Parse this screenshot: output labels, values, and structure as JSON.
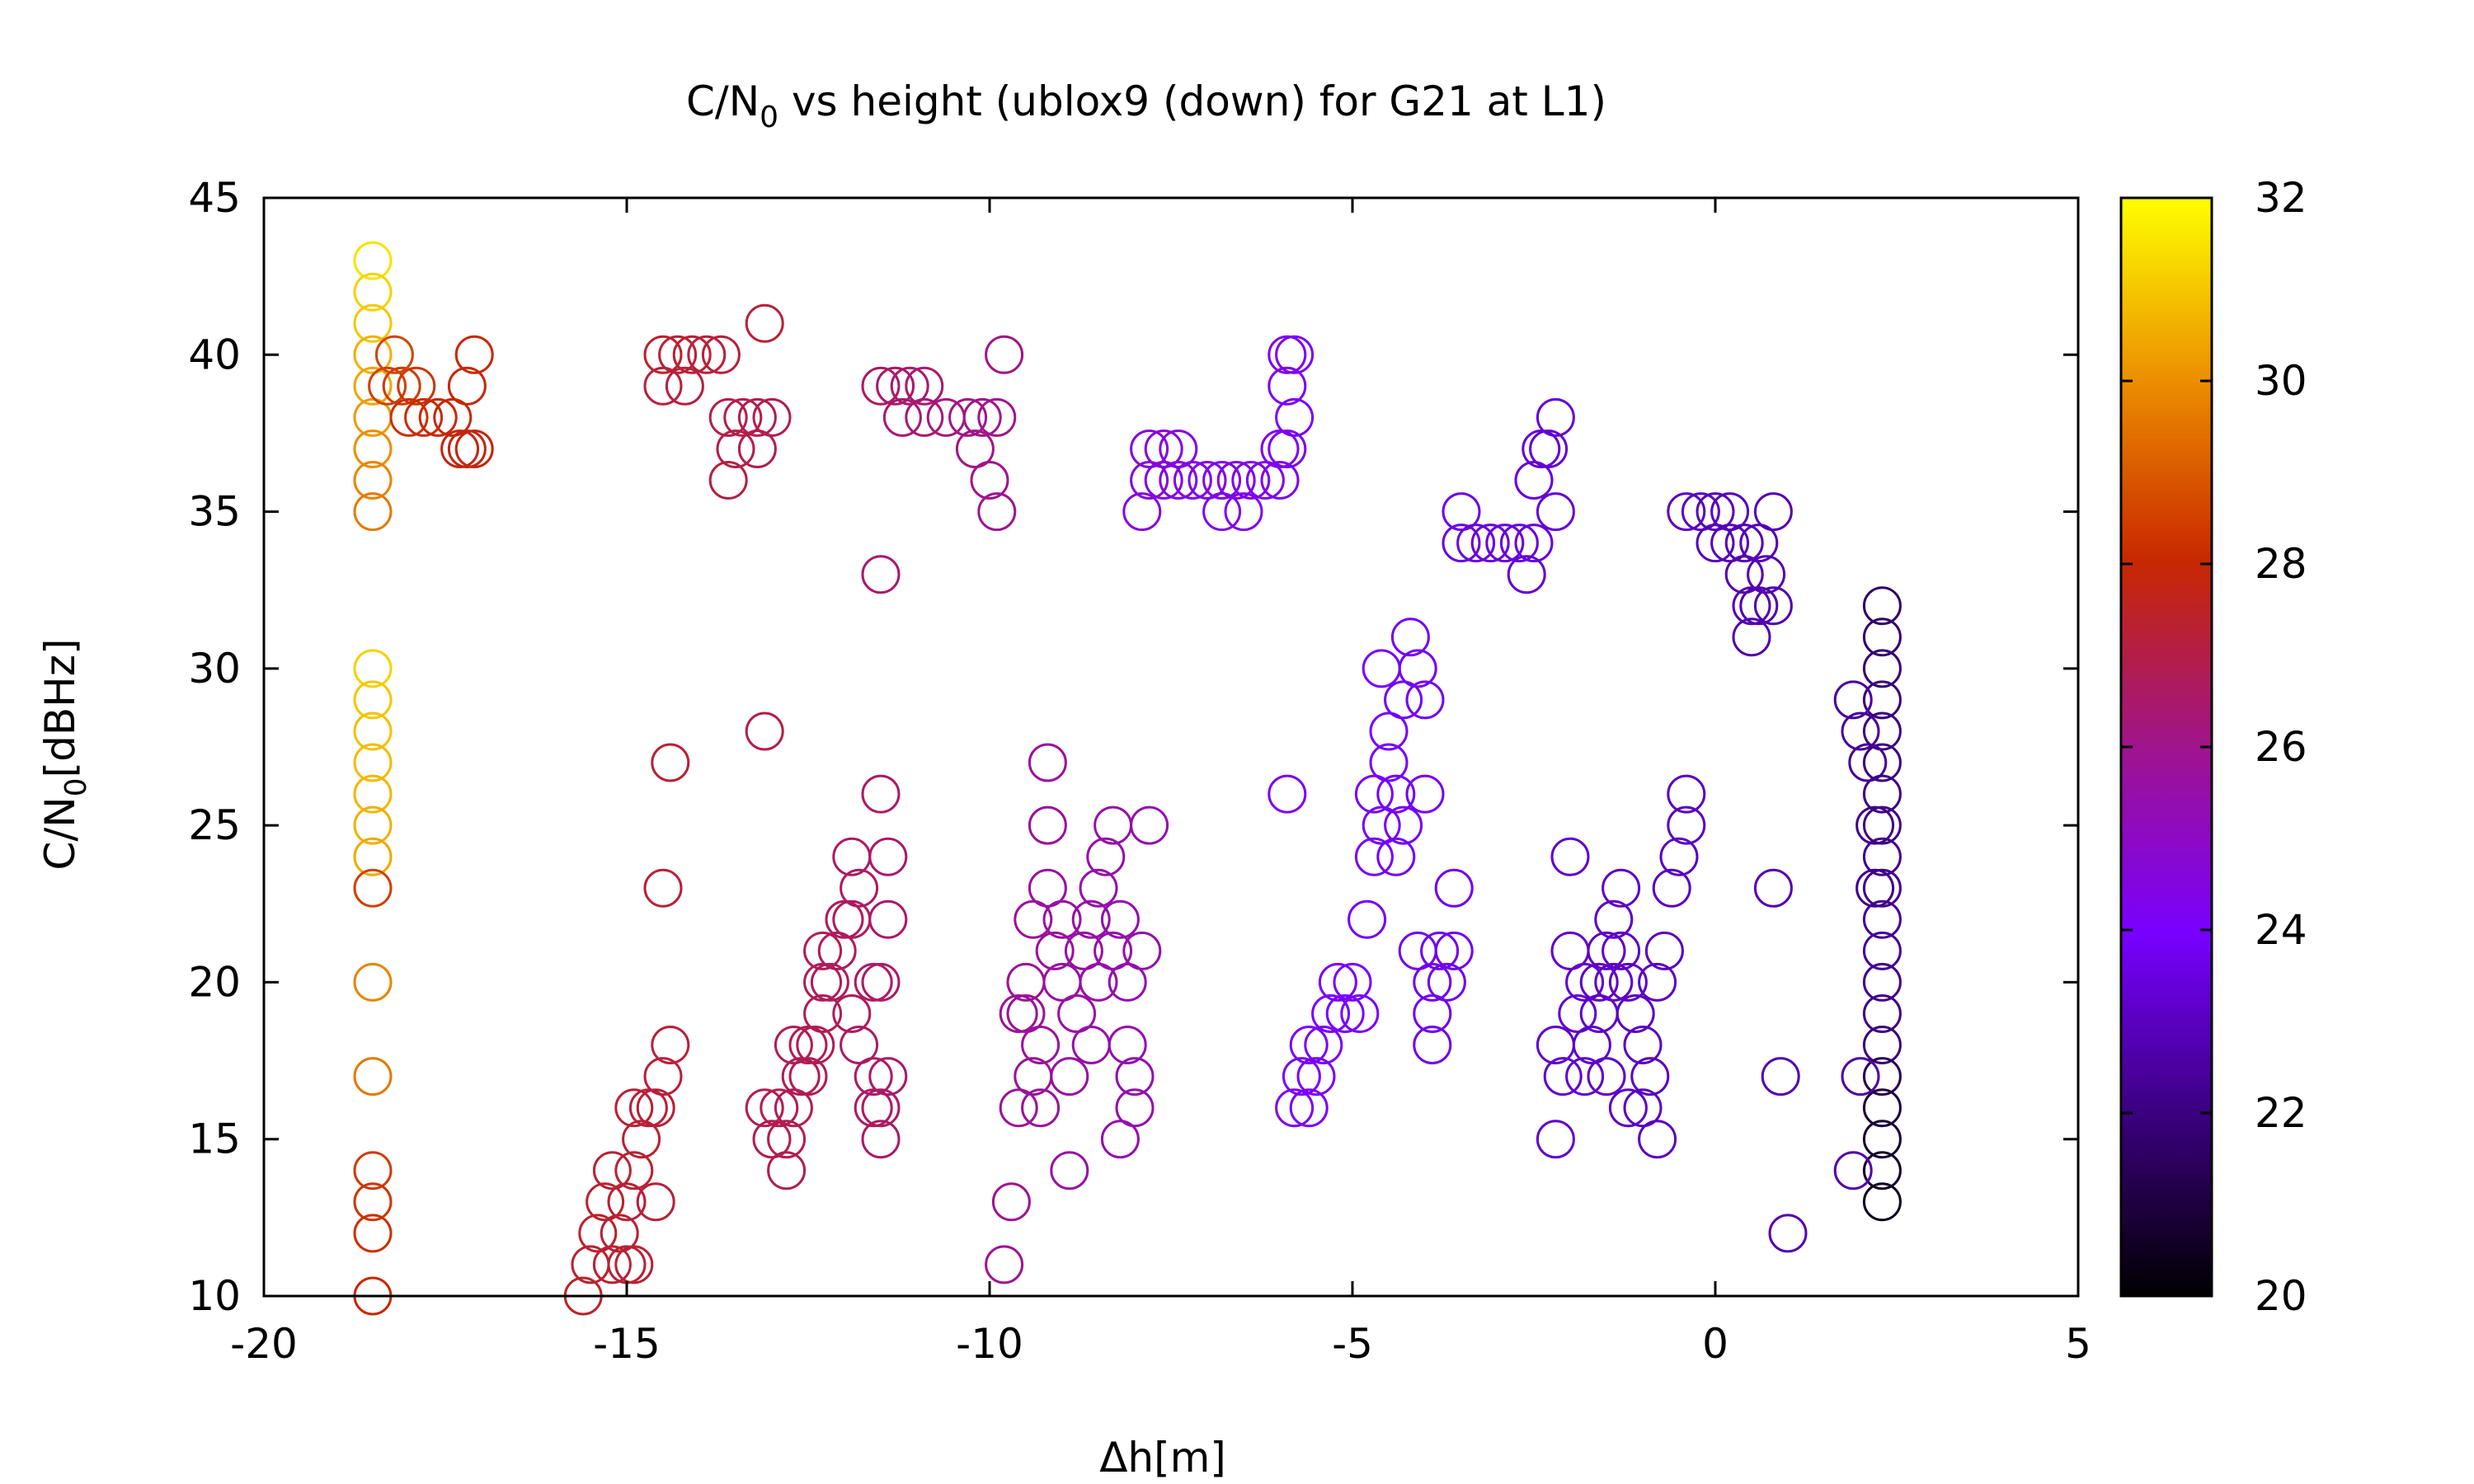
{
  "chart_data": {
    "type": "scatter",
    "title_main": "C/N",
    "title_sub": "0",
    "title_rest": " vs height (ublox9 (down) for G21 at L1)",
    "xlabel": "Δh[m]",
    "ylabel_main": "C/N",
    "ylabel_sub": "0",
    "ylabel_rest": "[dBHz]",
    "xlim": [
      -20,
      5
    ],
    "ylim": [
      10,
      45
    ],
    "xticks": [
      "-20",
      "-15",
      "-10",
      "-5",
      "0",
      "5"
    ],
    "yticks": [
      "10",
      "15",
      "20",
      "25",
      "30",
      "35",
      "40",
      "45"
    ],
    "colorbar": {
      "range": [
        20,
        32
      ],
      "ticks": [
        "20",
        "22",
        "24",
        "26",
        "28",
        "30",
        "32"
      ],
      "palette": "black-purple-red-orange-yellow"
    },
    "marker": "open-circle",
    "grid": false,
    "points": [
      [
        -18.5,
        43,
        31.5
      ],
      [
        -18.5,
        42,
        31.2
      ],
      [
        -18.5,
        41,
        31.0
      ],
      [
        -18.5,
        40,
        30.6
      ],
      [
        -18.5,
        39,
        30.4
      ],
      [
        -18.5,
        38,
        30.2
      ],
      [
        -18.5,
        37,
        30.0
      ],
      [
        -18.5,
        36,
        29.8
      ],
      [
        -18.5,
        35,
        29.6
      ],
      [
        -18.5,
        30,
        31.2
      ],
      [
        -18.5,
        29,
        31.0
      ],
      [
        -18.5,
        28,
        30.9
      ],
      [
        -18.5,
        27,
        30.8
      ],
      [
        -18.5,
        26,
        30.7
      ],
      [
        -18.5,
        25,
        30.6
      ],
      [
        -18.5,
        24,
        30.5
      ],
      [
        -18.5,
        23,
        28.5
      ],
      [
        -18.5,
        20,
        29.8
      ],
      [
        -18.5,
        17,
        29.6
      ],
      [
        -18.5,
        14,
        28.4
      ],
      [
        -18.5,
        13,
        28.3
      ],
      [
        -18.5,
        12,
        28.2
      ],
      [
        -18.5,
        10,
        28.0
      ],
      [
        -18.3,
        39,
        28.5
      ],
      [
        -18.1,
        39,
        28.4
      ],
      [
        -17.9,
        39,
        28.3
      ],
      [
        -18.2,
        40,
        28.6
      ],
      [
        -18.0,
        38,
        28.2
      ],
      [
        -17.8,
        38,
        28.1
      ],
      [
        -17.6,
        38,
        28.0
      ],
      [
        -17.4,
        38,
        27.9
      ],
      [
        -17.3,
        37,
        27.8
      ],
      [
        -17.2,
        37,
        27.8
      ],
      [
        -17.2,
        39,
        27.9
      ],
      [
        -17.1,
        40,
        28.0
      ],
      [
        -17.1,
        37,
        27.8
      ],
      [
        -14.5,
        40,
        27.4
      ],
      [
        -14.3,
        40,
        27.3
      ],
      [
        -14.1,
        40,
        27.3
      ],
      [
        -13.9,
        40,
        27.2
      ],
      [
        -13.7,
        40,
        27.2
      ],
      [
        -14.5,
        39,
        27.2
      ],
      [
        -14.2,
        39,
        27.1
      ],
      [
        -13.6,
        38,
        27.0
      ],
      [
        -13.4,
        38,
        27.0
      ],
      [
        -13.2,
        38,
        26.9
      ],
      [
        -13.5,
        37,
        27.0
      ],
      [
        -13.2,
        37,
        26.9
      ],
      [
        -13.6,
        36,
        27.1
      ],
      [
        -13.1,
        41,
        27.2
      ],
      [
        -13.0,
        38,
        26.9
      ],
      [
        -11.5,
        39,
        26.6
      ],
      [
        -11.3,
        39,
        26.5
      ],
      [
        -11.1,
        39,
        26.5
      ],
      [
        -10.9,
        39,
        26.4
      ],
      [
        -11.2,
        38,
        26.4
      ],
      [
        -10.9,
        38,
        26.3
      ],
      [
        -10.6,
        38,
        26.2
      ],
      [
        -10.3,
        38,
        26.1
      ],
      [
        -10.1,
        38,
        26.0
      ],
      [
        -9.9,
        38,
        26.0
      ],
      [
        -10.2,
        37,
        26.1
      ],
      [
        -10.0,
        36,
        26.0
      ],
      [
        -9.9,
        35,
        25.9
      ],
      [
        -9.8,
        40,
        26.1
      ],
      [
        -11.5,
        33,
        26.5
      ],
      [
        -7.8,
        37,
        24.6
      ],
      [
        -7.6,
        37,
        24.6
      ],
      [
        -7.4,
        37,
        24.5
      ],
      [
        -7.8,
        36,
        24.6
      ],
      [
        -7.6,
        36,
        24.5
      ],
      [
        -7.4,
        36,
        24.5
      ],
      [
        -7.2,
        36,
        24.5
      ],
      [
        -7.0,
        36,
        24.4
      ],
      [
        -6.8,
        36,
        24.4
      ],
      [
        -6.6,
        36,
        24.4
      ],
      [
        -6.4,
        36,
        24.3
      ],
      [
        -6.2,
        36,
        24.3
      ],
      [
        -6.0,
        36,
        24.3
      ],
      [
        -7.9,
        35,
        24.6
      ],
      [
        -6.8,
        35,
        24.4
      ],
      [
        -6.5,
        35,
        24.3
      ],
      [
        -6.0,
        37,
        24.3
      ],
      [
        -5.9,
        37,
        24.2
      ],
      [
        -5.9,
        40,
        24.2
      ],
      [
        -5.8,
        40,
        24.2
      ],
      [
        -5.9,
        39,
        24.2
      ],
      [
        -5.8,
        38,
        24.1
      ],
      [
        -3.5,
        35,
        23.6
      ],
      [
        -3.5,
        34,
        23.5
      ],
      [
        -3.3,
        34,
        23.5
      ],
      [
        -3.1,
        34,
        23.4
      ],
      [
        -2.9,
        34,
        23.4
      ],
      [
        -2.7,
        34,
        23.4
      ],
      [
        -2.5,
        34,
        23.4
      ],
      [
        -2.6,
        33,
        23.3
      ],
      [
        -2.5,
        36,
        23.4
      ],
      [
        -2.4,
        37,
        23.3
      ],
      [
        -2.3,
        37,
        23.3
      ],
      [
        -2.2,
        38,
        23.3
      ],
      [
        -2.2,
        35,
        23.3
      ],
      [
        -0.4,
        35,
        23.0
      ],
      [
        -0.2,
        35,
        23.0
      ],
      [
        0.0,
        35,
        22.9
      ],
      [
        0.2,
        35,
        22.9
      ],
      [
        0.0,
        34,
        22.9
      ],
      [
        0.2,
        34,
        22.9
      ],
      [
        0.4,
        34,
        22.8
      ],
      [
        0.6,
        34,
        22.8
      ],
      [
        0.4,
        33,
        22.8
      ],
      [
        0.5,
        32,
        22.8
      ],
      [
        0.6,
        32,
        22.7
      ],
      [
        0.5,
        31,
        22.7
      ],
      [
        0.8,
        35,
        22.8
      ],
      [
        0.7,
        33,
        22.8
      ],
      [
        0.8,
        32,
        22.7
      ],
      [
        2.3,
        32,
        21.6
      ],
      [
        2.3,
        31,
        21.7
      ],
      [
        2.3,
        30,
        21.8
      ],
      [
        2.3,
        29,
        21.9
      ],
      [
        2.3,
        28,
        22.0
      ],
      [
        2.3,
        27,
        22.0
      ],
      [
        2.3,
        26,
        22.1
      ],
      [
        2.3,
        25,
        22.1
      ],
      [
        2.3,
        24,
        22.2
      ],
      [
        2.3,
        23,
        22.2
      ],
      [
        2.3,
        22,
        22.3
      ],
      [
        2.3,
        21,
        22.3
      ],
      [
        2.3,
        20,
        22.2
      ],
      [
        2.3,
        19,
        22.1
      ],
      [
        2.3,
        18,
        21.9
      ],
      [
        2.3,
        17,
        21.3
      ],
      [
        2.3,
        16,
        21.0
      ],
      [
        2.3,
        15,
        20.8
      ],
      [
        2.3,
        14,
        20.6
      ],
      [
        2.3,
        13,
        20.5
      ],
      [
        2.0,
        28,
        22.4
      ],
      [
        1.9,
        29,
        22.5
      ],
      [
        2.1,
        27,
        22.3
      ],
      [
        2.0,
        17,
        22.6
      ],
      [
        1.9,
        14,
        22.7
      ],
      [
        2.2,
        25,
        22.2
      ],
      [
        2.2,
        23,
        22.2
      ],
      [
        -15.6,
        10,
        27.4
      ],
      [
        -15.5,
        11,
        27.4
      ],
      [
        -15.4,
        12,
        27.4
      ],
      [
        -15.3,
        13,
        27.4
      ],
      [
        -15.2,
        11,
        27.3
      ],
      [
        -15.1,
        12,
        27.3
      ],
      [
        -15.0,
        13,
        27.3
      ],
      [
        -14.9,
        14,
        27.3
      ],
      [
        -14.8,
        15,
        27.3
      ],
      [
        -14.7,
        16,
        27.2
      ],
      [
        -14.9,
        16,
        27.3
      ],
      [
        -14.6,
        13,
        27.2
      ],
      [
        -14.6,
        16,
        27.2
      ],
      [
        -14.5,
        17,
        27.2
      ],
      [
        -14.4,
        18,
        27.2
      ],
      [
        -14.5,
        23,
        27.3
      ],
      [
        -14.4,
        27,
        27.3
      ],
      [
        -15.2,
        14,
        27.3
      ],
      [
        -14.9,
        11,
        27.3
      ],
      [
        -15.0,
        11,
        27.3
      ],
      [
        -13.1,
        28,
        27.0
      ],
      [
        -13.1,
        16,
        26.9
      ],
      [
        -13.0,
        15,
        26.9
      ],
      [
        -12.9,
        16,
        26.9
      ],
      [
        -12.8,
        14,
        26.9
      ],
      [
        -12.8,
        15,
        26.9
      ],
      [
        -12.7,
        16,
        26.8
      ],
      [
        -12.6,
        17,
        26.8
      ],
      [
        -12.5,
        18,
        26.8
      ],
      [
        -12.4,
        18,
        26.8
      ],
      [
        -12.3,
        19,
        26.8
      ],
      [
        -12.3,
        20,
        26.8
      ],
      [
        -12.3,
        21,
        26.8
      ],
      [
        -12.2,
        20,
        26.7
      ],
      [
        -12.1,
        21,
        26.7
      ],
      [
        -12.0,
        22,
        26.7
      ],
      [
        -11.9,
        22,
        26.7
      ],
      [
        -11.9,
        24,
        26.6
      ],
      [
        -11.8,
        23,
        26.6
      ],
      [
        -11.9,
        19,
        26.7
      ],
      [
        -11.8,
        18,
        26.6
      ],
      [
        -11.6,
        20,
        26.6
      ],
      [
        -11.6,
        17,
        26.6
      ],
      [
        -11.6,
        16,
        26.6
      ],
      [
        -11.5,
        15,
        26.6
      ],
      [
        -11.5,
        16,
        26.6
      ],
      [
        -11.4,
        17,
        26.5
      ],
      [
        -11.4,
        22,
        26.5
      ],
      [
        -11.4,
        24,
        26.5
      ],
      [
        -11.5,
        26,
        26.6
      ],
      [
        -11.5,
        20,
        26.6
      ],
      [
        -12.5,
        17,
        26.8
      ],
      [
        -12.7,
        18,
        26.8
      ],
      [
        -9.8,
        11,
        25.9
      ],
      [
        -9.7,
        13,
        25.9
      ],
      [
        -9.6,
        16,
        25.8
      ],
      [
        -9.6,
        19,
        25.8
      ],
      [
        -9.5,
        20,
        25.8
      ],
      [
        -9.4,
        17,
        25.8
      ],
      [
        -9.4,
        22,
        25.8
      ],
      [
        -9.3,
        16,
        25.7
      ],
      [
        -9.3,
        18,
        25.7
      ],
      [
        -9.2,
        23,
        25.7
      ],
      [
        -9.2,
        25,
        25.7
      ],
      [
        -9.2,
        27,
        25.7
      ],
      [
        -9.1,
        21,
        25.7
      ],
      [
        -9.0,
        20,
        25.6
      ],
      [
        -9.0,
        22,
        25.6
      ],
      [
        -8.9,
        17,
        25.6
      ],
      [
        -8.9,
        14,
        25.6
      ],
      [
        -8.8,
        19,
        25.6
      ],
      [
        -8.7,
        21,
        25.6
      ],
      [
        -8.6,
        22,
        25.5
      ],
      [
        -8.6,
        18,
        25.5
      ],
      [
        -8.5,
        20,
        25.5
      ],
      [
        -8.5,
        23,
        25.5
      ],
      [
        -8.4,
        24,
        25.5
      ],
      [
        -8.3,
        25,
        25.5
      ],
      [
        -8.3,
        21,
        25.5
      ],
      [
        -8.2,
        22,
        25.4
      ],
      [
        -8.2,
        15,
        25.4
      ],
      [
        -8.1,
        18,
        25.4
      ],
      [
        -8.0,
        17,
        25.4
      ],
      [
        -8.0,
        16,
        25.4
      ],
      [
        -7.9,
        21,
        25.4
      ],
      [
        -7.8,
        25,
        25.4
      ],
      [
        -8.1,
        20,
        25.4
      ],
      [
        -9.5,
        19,
        25.8
      ],
      [
        -5.9,
        26,
        24.2
      ],
      [
        -5.8,
        16,
        24.2
      ],
      [
        -5.7,
        17,
        24.1
      ],
      [
        -5.6,
        18,
        24.1
      ],
      [
        -5.5,
        17,
        24.1
      ],
      [
        -5.4,
        18,
        24.1
      ],
      [
        -5.3,
        19,
        24.0
      ],
      [
        -5.2,
        20,
        24.0
      ],
      [
        -5.1,
        19,
        24.0
      ],
      [
        -5.0,
        20,
        24.0
      ],
      [
        -4.9,
        19,
        24.0
      ],
      [
        -4.8,
        22,
        23.9
      ],
      [
        -4.7,
        24,
        23.9
      ],
      [
        -4.7,
        26,
        23.9
      ],
      [
        -4.6,
        25,
        23.9
      ],
      [
        -4.6,
        30,
        23.9
      ],
      [
        -4.5,
        27,
        23.9
      ],
      [
        -4.5,
        28,
        23.9
      ],
      [
        -4.4,
        26,
        23.8
      ],
      [
        -4.4,
        24,
        23.8
      ],
      [
        -4.3,
        25,
        23.8
      ],
      [
        -4.3,
        29,
        23.8
      ],
      [
        -4.2,
        31,
        23.8
      ],
      [
        -4.1,
        30,
        23.8
      ],
      [
        -4.0,
        29,
        23.8
      ],
      [
        -4.0,
        26,
        23.8
      ],
      [
        -4.1,
        21,
        23.8
      ],
      [
        -3.9,
        20,
        23.7
      ],
      [
        -3.9,
        19,
        23.7
      ],
      [
        -3.9,
        18,
        23.7
      ],
      [
        -3.8,
        21,
        23.7
      ],
      [
        -3.7,
        20,
        23.7
      ],
      [
        -3.6,
        23,
        23.7
      ],
      [
        -3.6,
        21,
        23.7
      ],
      [
        -5.6,
        16,
        24.1
      ],
      [
        -2.2,
        15,
        23.2
      ],
      [
        -2.2,
        18,
        23.2
      ],
      [
        -2.1,
        17,
        23.2
      ],
      [
        -2.0,
        21,
        23.2
      ],
      [
        -2.0,
        24,
        23.2
      ],
      [
        -1.9,
        19,
        23.2
      ],
      [
        -1.8,
        20,
        23.2
      ],
      [
        -1.8,
        17,
        23.2
      ],
      [
        -1.7,
        18,
        23.1
      ],
      [
        -1.6,
        20,
        23.1
      ],
      [
        -1.6,
        19,
        23.1
      ],
      [
        -1.5,
        21,
        23.1
      ],
      [
        -1.4,
        22,
        23.1
      ],
      [
        -1.4,
        20,
        23.1
      ],
      [
        -1.3,
        23,
        23.1
      ],
      [
        -1.3,
        21,
        23.1
      ],
      [
        -1.2,
        16,
        23.1
      ],
      [
        -1.1,
        19,
        23.0
      ],
      [
        -1.0,
        18,
        23.0
      ],
      [
        -1.0,
        16,
        23.0
      ],
      [
        -0.9,
        17,
        23.0
      ],
      [
        -0.8,
        15,
        23.0
      ],
      [
        -0.8,
        20,
        23.0
      ],
      [
        -0.7,
        21,
        23.0
      ],
      [
        -0.6,
        23,
        23.0
      ],
      [
        -0.5,
        24,
        23.0
      ],
      [
        -0.4,
        25,
        23.0
      ],
      [
        -0.4,
        26,
        23.0
      ],
      [
        -1.5,
        17,
        23.1
      ],
      [
        -1.2,
        20,
        23.1
      ],
      [
        0.8,
        23,
        22.8
      ],
      [
        0.9,
        17,
        22.8
      ],
      [
        1.0,
        12,
        22.8
      ]
    ]
  }
}
